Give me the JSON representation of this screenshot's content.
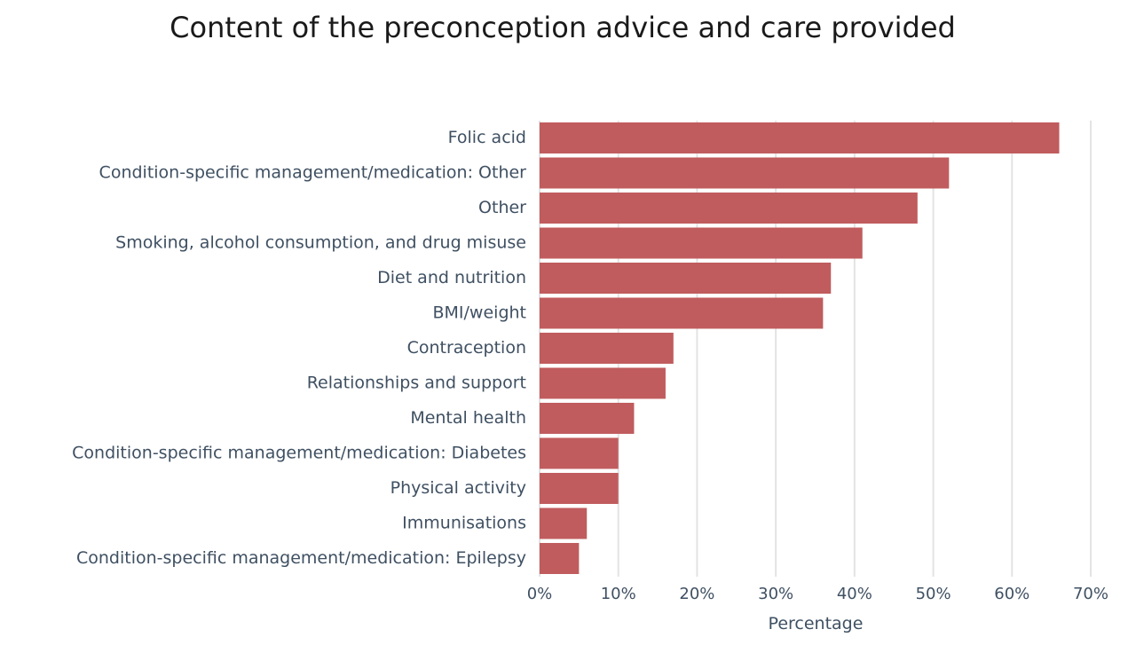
{
  "chart_data": {
    "type": "bar",
    "orientation": "horizontal",
    "title": "Content of the preconception advice and care provided",
    "xlabel": "Percentage",
    "ylabel": "",
    "categories": [
      "Folic acid",
      "Condition-specific management/medication: Other",
      "Other",
      "Smoking, alcohol consumption, and drug misuse",
      "Diet and nutrition",
      "BMI/weight",
      "Contraception",
      "Relationships and support",
      "Mental health",
      "Condition-specific management/medication: Diabetes",
      "Physical activity",
      "Immunisations",
      "Condition-specific management/medication: Epilepsy"
    ],
    "values": [
      66,
      52,
      48,
      41,
      37,
      36,
      17,
      16,
      12,
      10,
      10,
      6,
      5
    ],
    "xlim": [
      0,
      70
    ],
    "ticks": [
      0,
      10,
      20,
      30,
      40,
      50,
      60,
      70
    ],
    "tick_labels": [
      "0%",
      "10%",
      "20%",
      "30%",
      "40%",
      "50%",
      "60%",
      "70%"
    ],
    "grid": true,
    "legend": "none",
    "bar_color": "#c05c5e",
    "grid_color": "#e3e3e3"
  }
}
